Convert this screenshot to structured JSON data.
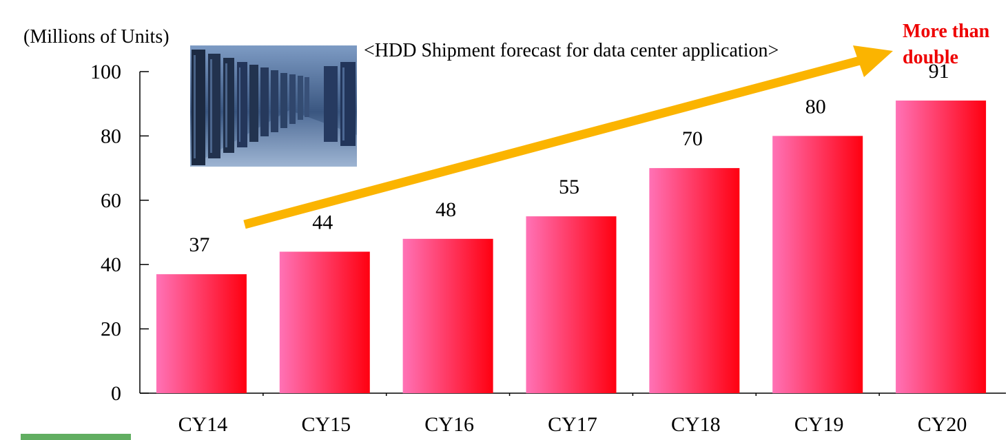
{
  "chart_data": {
    "type": "bar",
    "title": "<HDD Shipment forecast for data center application>",
    "ylabel": "(Millions of Units)",
    "xlabel": "",
    "categories": [
      "CY14",
      "CY15",
      "CY16",
      "CY17",
      "CY18",
      "CY19",
      "CY20"
    ],
    "values": [
      37,
      44,
      48,
      55,
      70,
      80,
      91
    ],
    "ylim": [
      0,
      100
    ],
    "yticks": [
      0,
      20,
      40,
      60,
      80,
      100
    ],
    "grid": false,
    "legend": "none",
    "annotation": {
      "lines": [
        "More than",
        "double"
      ],
      "color": "#ee0000"
    },
    "colors": {
      "bar_light": "#ff72b6",
      "bar_dark": "#ff0010",
      "trend_arrow": "#fbb400",
      "axis": "#000000"
    },
    "image": "data-center-server-room-photo"
  }
}
